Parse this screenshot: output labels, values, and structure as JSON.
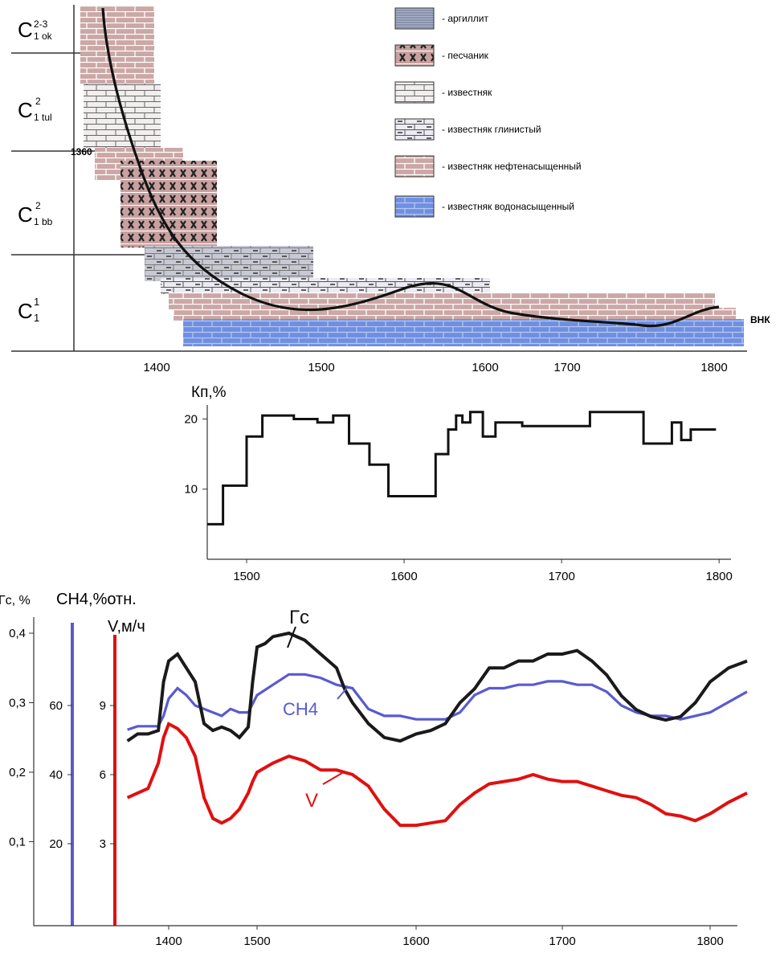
{
  "strat": {
    "units": [
      {
        "base": "C",
        "sup": "2-3",
        "sub": "1 ok"
      },
      {
        "base": "C",
        "sup": "2",
        "sub": "1 tul"
      },
      {
        "base": "C",
        "sup": "2",
        "sub": "1 bb"
      },
      {
        "base": "C",
        "sup": "1",
        "sub": "1"
      }
    ],
    "depth_marker": "1360",
    "wnk_label": "ВНК",
    "x_ticks": [
      "1400",
      "1500",
      "1600",
      "1700",
      "1800"
    ]
  },
  "legend": [
    {
      "label": "- аргиллит",
      "pattern": "argillite"
    },
    {
      "label": "- песчаник",
      "pattern": "sandstone"
    },
    {
      "label": "- известняк",
      "pattern": "limestone"
    },
    {
      "label": "- известняк глинистый",
      "pattern": "clay-limestone"
    },
    {
      "label": "- известняк нефтенасыщенный",
      "pattern": "oil-limestone"
    },
    {
      "label": "- известняк водонасыщенный",
      "pattern": "water-limestone"
    }
  ],
  "colors": {
    "gc": "#1a1a1a",
    "ch4": "#5a5ad0",
    "v": "#e01010",
    "oil": "#c9a3a3",
    "water": "#6f8fe0"
  },
  "chart_data": [
    {
      "type": "line",
      "ylabel": "Кп,%",
      "xlim": [
        1475,
        1805
      ],
      "ylim": [
        0,
        22
      ],
      "x_ticks": [
        "1500",
        "1600",
        "1700",
        "1800"
      ],
      "y_ticks": [
        "10",
        "20"
      ],
      "series": [
        {
          "x": [
            1475,
            1485,
            1485,
            1490,
            1490,
            1500,
            1500,
            1510,
            1510,
            1530,
            1530,
            1545,
            1545,
            1555,
            1555,
            1562,
            1562,
            1565,
            1565,
            1578,
            1578,
            1585,
            1585,
            1590,
            1590,
            1620,
            1620,
            1628,
            1628,
            1633,
            1633,
            1637,
            1637,
            1642,
            1642,
            1650,
            1650,
            1658,
            1658,
            1675,
            1675,
            1690,
            1690,
            1718,
            1718,
            1752,
            1752,
            1765,
            1765,
            1770,
            1770,
            1776,
            1776,
            1782,
            1782,
            1787,
            1787,
            1798
          ],
          "y": [
            5,
            5,
            10.5,
            10.5,
            10.5,
            10.5,
            17.5,
            17.5,
            20.5,
            20.5,
            20,
            20,
            19.5,
            19.5,
            20.5,
            20.5,
            20.5,
            20.5,
            16.5,
            16.5,
            13.5,
            13.5,
            13.5,
            13.5,
            9,
            9,
            15,
            15,
            18.5,
            18.5,
            20.5,
            20.5,
            19.5,
            19.5,
            21,
            21,
            17.5,
            17.5,
            19.5,
            19.5,
            19,
            19,
            19,
            19,
            21,
            21,
            16.5,
            16.5,
            16.5,
            16.5,
            19.5,
            19.5,
            17,
            17,
            18.5,
            18.5,
            18.5,
            18.5
          ]
        }
      ]
    },
    {
      "type": "line",
      "axes": {
        "gc": {
          "label": "Гс, %",
          "ticks": [
            "0,1",
            "0,2",
            "0,3",
            "0,4"
          ]
        },
        "ch4": {
          "label": "CH4,%отн.",
          "ticks": [
            "20",
            "40",
            "60"
          ]
        },
        "v": {
          "label": "V,м/ч",
          "ticks": [
            "3",
            "6",
            "9"
          ]
        }
      },
      "xlim": [
        1330,
        1820
      ],
      "x_ticks": [
        "1400",
        "1500",
        "1600",
        "1700",
        "1800"
      ],
      "series": [
        {
          "name": "Гс",
          "x": [
            1360,
            1370,
            1380,
            1390,
            1395,
            1400,
            1410,
            1420,
            1430,
            1440,
            1450,
            1460,
            1470,
            1480,
            1490,
            1495,
            1500,
            1505,
            1510,
            1520,
            1530,
            1540,
            1545,
            1550,
            1555,
            1560,
            1570,
            1580,
            1590,
            1600,
            1610,
            1620,
            1630,
            1640,
            1650,
            1660,
            1670,
            1680,
            1690,
            1700,
            1710,
            1720,
            1730,
            1740,
            1750,
            1760,
            1770,
            1780,
            1790,
            1800,
            1810,
            1820
          ],
          "y": [
            0.245,
            0.255,
            0.255,
            0.26,
            0.33,
            0.36,
            0.37,
            0.35,
            0.33,
            0.27,
            0.26,
            0.265,
            0.26,
            0.25,
            0.265,
            0.33,
            0.38,
            0.385,
            0.395,
            0.4,
            0.39,
            0.37,
            0.36,
            0.35,
            0.32,
            0.3,
            0.27,
            0.25,
            0.245,
            0.255,
            0.26,
            0.27,
            0.3,
            0.32,
            0.35,
            0.35,
            0.36,
            0.36,
            0.37,
            0.37,
            0.375,
            0.36,
            0.34,
            0.31,
            0.29,
            0.28,
            0.275,
            0.28,
            0.3,
            0.33,
            0.35,
            0.36
          ]
        },
        {
          "name": "CH4",
          "x": [
            1360,
            1370,
            1380,
            1390,
            1395,
            1400,
            1410,
            1420,
            1430,
            1440,
            1450,
            1460,
            1470,
            1480,
            1490,
            1500,
            1510,
            1520,
            1530,
            1540,
            1550,
            1560,
            1570,
            1580,
            1590,
            1600,
            1610,
            1620,
            1630,
            1640,
            1650,
            1660,
            1670,
            1680,
            1690,
            1700,
            1710,
            1720,
            1730,
            1740,
            1750,
            1760,
            1770,
            1780,
            1790,
            1800,
            1810,
            1820
          ],
          "y": [
            53,
            54,
            54,
            54,
            57,
            62,
            65,
            63,
            60,
            59,
            58,
            57,
            59,
            58,
            58,
            63,
            66,
            69,
            69,
            68,
            66,
            65,
            59,
            57,
            57,
            56,
            56,
            56,
            58,
            63,
            65,
            65,
            66,
            66,
            67,
            67,
            66,
            66,
            64,
            60,
            58,
            57,
            57,
            56,
            57,
            58,
            61,
            64
          ]
        },
        {
          "name": "V",
          "x": [
            1360,
            1370,
            1380,
            1390,
            1395,
            1400,
            1410,
            1420,
            1430,
            1440,
            1450,
            1460,
            1470,
            1480,
            1490,
            1495,
            1500,
            1505,
            1510,
            1520,
            1530,
            1540,
            1550,
            1560,
            1570,
            1580,
            1590,
            1600,
            1610,
            1620,
            1630,
            1640,
            1650,
            1660,
            1670,
            1680,
            1690,
            1700,
            1710,
            1720,
            1730,
            1740,
            1750,
            1760,
            1770,
            1780,
            1790,
            1800,
            1810,
            1820
          ],
          "y": [
            5,
            5.2,
            5.4,
            6.5,
            7.6,
            8.2,
            8,
            7.6,
            6.8,
            5,
            4.1,
            3.9,
            4.1,
            4.5,
            5.2,
            5.7,
            6.1,
            6.3,
            6.5,
            6.8,
            6.6,
            6.2,
            6.2,
            6,
            5.5,
            4.5,
            3.8,
            3.8,
            3.9,
            4,
            4.7,
            5.2,
            5.6,
            5.7,
            5.8,
            6,
            5.8,
            5.7,
            5.7,
            5.5,
            5.3,
            5.1,
            5,
            4.7,
            4.3,
            4.2,
            4.0,
            4.3,
            4.8,
            5.2
          ]
        }
      ],
      "annotations": [
        "Гс",
        "CH4",
        "V"
      ]
    }
  ]
}
